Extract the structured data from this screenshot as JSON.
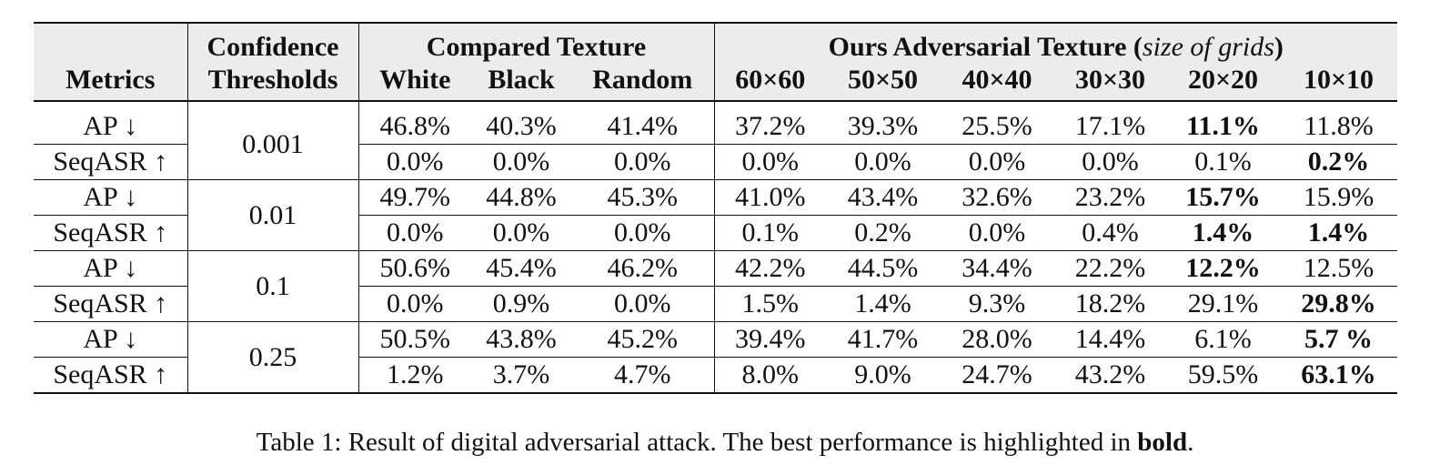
{
  "table": {
    "header": {
      "metrics": "Metrics",
      "confidence_line1": "Confidence",
      "confidence_line2": "Thresholds",
      "compared_texture": "Compared Texture",
      "ours_prefix": "Ours Adversarial Texture (",
      "ours_italic": "size of grids",
      "ours_suffix": ")",
      "compared_columns": [
        "White",
        "Black",
        "Random"
      ],
      "ours_columns": [
        "60×60",
        "50×50",
        "40×40",
        "30×30",
        "20×20",
        "10×10"
      ]
    },
    "groups": [
      {
        "threshold": "0.001",
        "rows": [
          {
            "metric": "AP ↓",
            "compared": [
              "46.8%",
              "40.3%",
              "41.4%"
            ],
            "ours": [
              "37.2%",
              "39.3%",
              "25.5%",
              "17.1%",
              "11.1%",
              "11.8%"
            ],
            "bold_ours_index": 4
          },
          {
            "metric": "SeqASR ↑",
            "compared": [
              "0.0%",
              "0.0%",
              "0.0%"
            ],
            "ours": [
              "0.0%",
              "0.0%",
              "0.0%",
              "0.0%",
              "0.1%",
              "0.2%"
            ],
            "bold_ours_index": 5
          }
        ]
      },
      {
        "threshold": "0.01",
        "rows": [
          {
            "metric": "AP ↓",
            "compared": [
              "49.7%",
              "44.8%",
              "45.3%"
            ],
            "ours": [
              "41.0%",
              "43.4%",
              "32.6%",
              "23.2%",
              "15.7%",
              "15.9%"
            ],
            "bold_ours_index": 4
          },
          {
            "metric": "SeqASR ↑",
            "compared": [
              "0.0%",
              "0.0%",
              "0.0%"
            ],
            "ours": [
              "0.1%",
              "0.2%",
              "0.0%",
              "0.4%",
              "1.4%",
              "1.4%"
            ],
            "bold_ours_index": [
              4,
              5
            ]
          }
        ]
      },
      {
        "threshold": "0.1",
        "rows": [
          {
            "metric": "AP ↓",
            "compared": [
              "50.6%",
              "45.4%",
              "46.2%"
            ],
            "ours": [
              "42.2%",
              "44.5%",
              "34.4%",
              "22.2%",
              "12.2%",
              "12.5%"
            ],
            "bold_ours_index": 4
          },
          {
            "metric": "SeqASR ↑",
            "compared": [
              "0.0%",
              "0.9%",
              "0.0%"
            ],
            "ours": [
              "1.5%",
              "1.4%",
              "9.3%",
              "18.2%",
              "29.1%",
              "29.8%"
            ],
            "bold_ours_index": 5
          }
        ]
      },
      {
        "threshold": "0.25",
        "rows": [
          {
            "metric": "AP ↓",
            "compared": [
              "50.5%",
              "43.8%",
              "45.2%"
            ],
            "ours": [
              "39.4%",
              "41.7%",
              "28.0%",
              "14.4%",
              "6.1%",
              "5.7 %"
            ],
            "bold_ours_index": 5
          },
          {
            "metric": "SeqASR ↑",
            "compared": [
              "1.2%",
              "3.7%",
              "4.7%"
            ],
            "ours": [
              "8.0%",
              "9.0%",
              "24.7%",
              "43.2%",
              "59.5%",
              "63.1%"
            ],
            "bold_ours_index": 5
          }
        ]
      }
    ]
  },
  "caption": {
    "prefix": "Table 1: Result of digital adversarial attack. The best performance is highlighted in ",
    "bold_word": "bold",
    "suffix": "."
  }
}
